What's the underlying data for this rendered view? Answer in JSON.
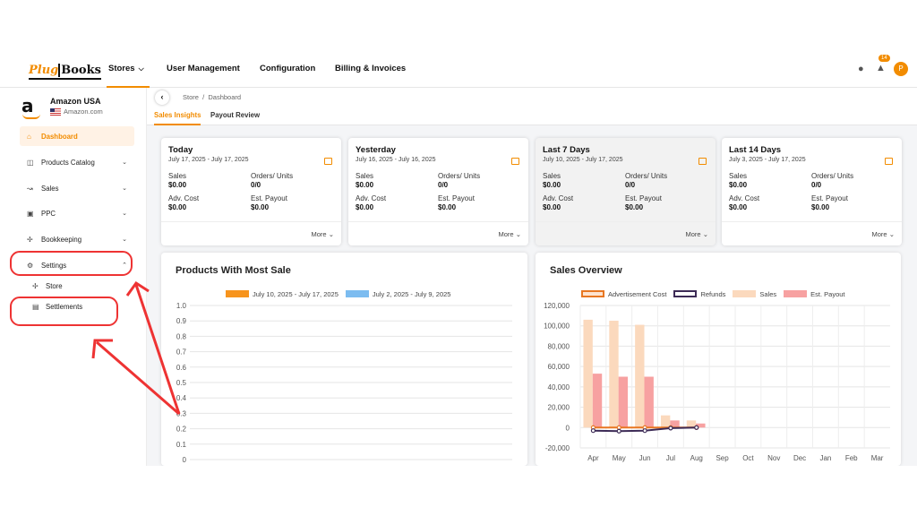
{
  "nav": {
    "logo_part1": "Plug",
    "logo_part2": "Books",
    "items": [
      "Stores",
      "User Management",
      "Configuration",
      "Billing & Invoices"
    ],
    "notification_count": "14",
    "avatar_initial": "P"
  },
  "sidebar": {
    "store_name": "Amazon USA",
    "store_domain": "Amazon.com",
    "logo_letter": "a",
    "items": [
      {
        "label": "Dashboard",
        "icon": "home-icon",
        "active": true
      },
      {
        "label": "Products Catalog",
        "icon": "box-icon"
      },
      {
        "label": "Sales",
        "icon": "chart-icon"
      },
      {
        "label": "PPC",
        "icon": "ppc-icon"
      },
      {
        "label": "Bookkeeping",
        "icon": "grid-icon"
      },
      {
        "label": "Settings",
        "icon": "gear-icon"
      }
    ],
    "sub_items": [
      {
        "label": "Store",
        "icon": "grid-icon"
      },
      {
        "label": "Settlements",
        "icon": "document-icon"
      }
    ]
  },
  "breadcrumb": {
    "store": "Store",
    "sep": "/",
    "page": "Dashboard"
  },
  "tabs": [
    "Sales Insights",
    "Payout Review"
  ],
  "cards": [
    {
      "title": "Today",
      "range": "July 17, 2025 - July 17, 2025",
      "sales_label": "Sales",
      "sales": "$0.00",
      "orders_label": "Orders/ Units",
      "orders": "0/0",
      "adv_label": "Adv. Cost",
      "adv": "$0.00",
      "payout_label": "Est. Payout",
      "payout": "$0.00",
      "more": "More"
    },
    {
      "title": "Yesterday",
      "range": "July 16, 2025 - July 16, 2025",
      "sales_label": "Sales",
      "sales": "$0.00",
      "orders_label": "Orders/ Units",
      "orders": "0/0",
      "adv_label": "Adv. Cost",
      "adv": "$0.00",
      "payout_label": "Est. Payout",
      "payout": "$0.00",
      "more": "More"
    },
    {
      "title": "Last 7 Days",
      "range": "July 10, 2025 - July 17, 2025",
      "sales_label": "Sales",
      "sales": "$0.00",
      "orders_label": "Orders/ Units",
      "orders": "0/0",
      "adv_label": "Adv. Cost",
      "adv": "$0.00",
      "payout_label": "Est. Payout",
      "payout": "$0.00",
      "more": "More"
    },
    {
      "title": "Last 14 Days",
      "range": "July 3, 2025 - July 17, 2025",
      "sales_label": "Sales",
      "sales": "$0.00",
      "orders_label": "Orders/ Units",
      "orders": "0/0",
      "adv_label": "Adv. Cost",
      "adv": "$0.00",
      "payout_label": "Est. Payout",
      "payout": "$0.00",
      "more": "More"
    }
  ],
  "products_panel": {
    "title": "Products With Most Sale"
  },
  "sales_panel": {
    "title": "Sales Overview"
  },
  "colors": {
    "accent": "#f28c00",
    "annotation": "#e33333"
  },
  "chart_data": [
    {
      "type": "bar",
      "title": "Products With Most Sale",
      "series": [
        {
          "name": "July 10, 2025 - July 17, 2025",
          "color": "#f7941d",
          "values": []
        },
        {
          "name": "July 2, 2025 - July 9, 2025",
          "color": "#7cbcf0",
          "values": []
        }
      ],
      "y_ticks": [
        "1.0",
        "0.9",
        "0.8",
        "0.7",
        "0.6",
        "0.5",
        "0.4",
        "0.3",
        "0.2",
        "0.1",
        "0"
      ],
      "ylim": [
        0,
        1
      ]
    },
    {
      "type": "bar",
      "title": "Sales Overview",
      "categories": [
        "Apr",
        "May",
        "Jun",
        "Jul",
        "Aug",
        "Sep",
        "Oct",
        "Nov",
        "Dec",
        "Jan",
        "Feb",
        "Mar"
      ],
      "y_ticks": [
        "120,000",
        "100,000",
        "80,000",
        "60,000",
        "40,000",
        "20,000",
        "0",
        "-20,000"
      ],
      "ylim": [
        -20000,
        120000
      ],
      "series": [
        {
          "name": "Advertisement Cost",
          "kind": "line",
          "color": "#e87722",
          "values": [
            0,
            0,
            0,
            0,
            0,
            null,
            null,
            null,
            null,
            null,
            null,
            null
          ]
        },
        {
          "name": "Refunds",
          "kind": "line",
          "color": "#3d2b56",
          "values": [
            -3000,
            -3500,
            -3000,
            -500,
            0,
            null,
            null,
            null,
            null,
            null,
            null,
            null
          ]
        },
        {
          "name": "Sales",
          "kind": "bar",
          "color": "#fbd9bd",
          "values": [
            106000,
            105000,
            101000,
            12000,
            7000,
            0,
            0,
            0,
            0,
            0,
            0,
            0
          ]
        },
        {
          "name": "Est. Payout",
          "kind": "bar",
          "color": "#f7a1a1",
          "values": [
            53000,
            50000,
            50000,
            7000,
            4000,
            0,
            0,
            0,
            0,
            0,
            0,
            0
          ]
        }
      ]
    }
  ]
}
